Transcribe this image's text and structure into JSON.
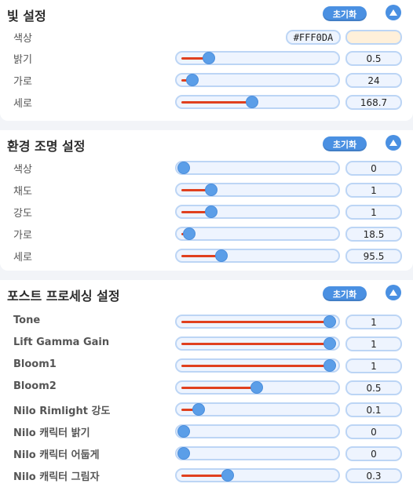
{
  "sections": [
    {
      "title": "빛 설정",
      "reset_label": "초기화",
      "color": {
        "label": "색상",
        "hex": "#FFF0DA"
      },
      "rows": [
        {
          "label": "밝기",
          "value": "0.5",
          "fraction": 0.17
        },
        {
          "label": "가로",
          "value": "24",
          "fraction": 0.06
        },
        {
          "label": "세로",
          "value": "168.7",
          "fraction": 0.47
        }
      ]
    },
    {
      "title": "환경 조명 설정",
      "reset_label": "초기화",
      "rows": [
        {
          "label": "색상",
          "value": "0",
          "fraction": 0.0
        },
        {
          "label": "채도",
          "value": "1",
          "fraction": 0.19
        },
        {
          "label": "강도",
          "value": "1",
          "fraction": 0.19
        },
        {
          "label": "가로",
          "value": "18.5",
          "fraction": 0.04
        },
        {
          "label": "세로",
          "value": "95.5",
          "fraction": 0.26
        }
      ]
    },
    {
      "title": "포스트 프로세싱 설정",
      "reset_label": "초기화",
      "rows": [
        {
          "label": "Tone",
          "value": "1",
          "fraction": 1.0
        },
        {
          "label": "Lift Gamma Gain",
          "value": "1",
          "fraction": 1.0
        },
        {
          "label": "Bloom1",
          "value": "1",
          "fraction": 1.0
        },
        {
          "label": "Bloom2",
          "value": "0.5",
          "fraction": 0.5
        },
        {
          "label": "Nilo Rimlight 강도",
          "value": "0.1",
          "fraction": 0.1
        },
        {
          "label": "Nilo 캐릭터 밝기",
          "value": "0",
          "fraction": 0.0
        },
        {
          "label": "Nilo 캐릭터 어둡게",
          "value": "0",
          "fraction": 0.0
        },
        {
          "label": "Nilo 캐릭터 그림자",
          "value": "0.3",
          "fraction": 0.3
        }
      ]
    }
  ],
  "colors": {
    "accent": "#4a90e2",
    "slider_fill": "#e0401e",
    "slider_thumb": "#5b9ee8"
  },
  "icons": {
    "collapse": "chevron-up-icon"
  }
}
